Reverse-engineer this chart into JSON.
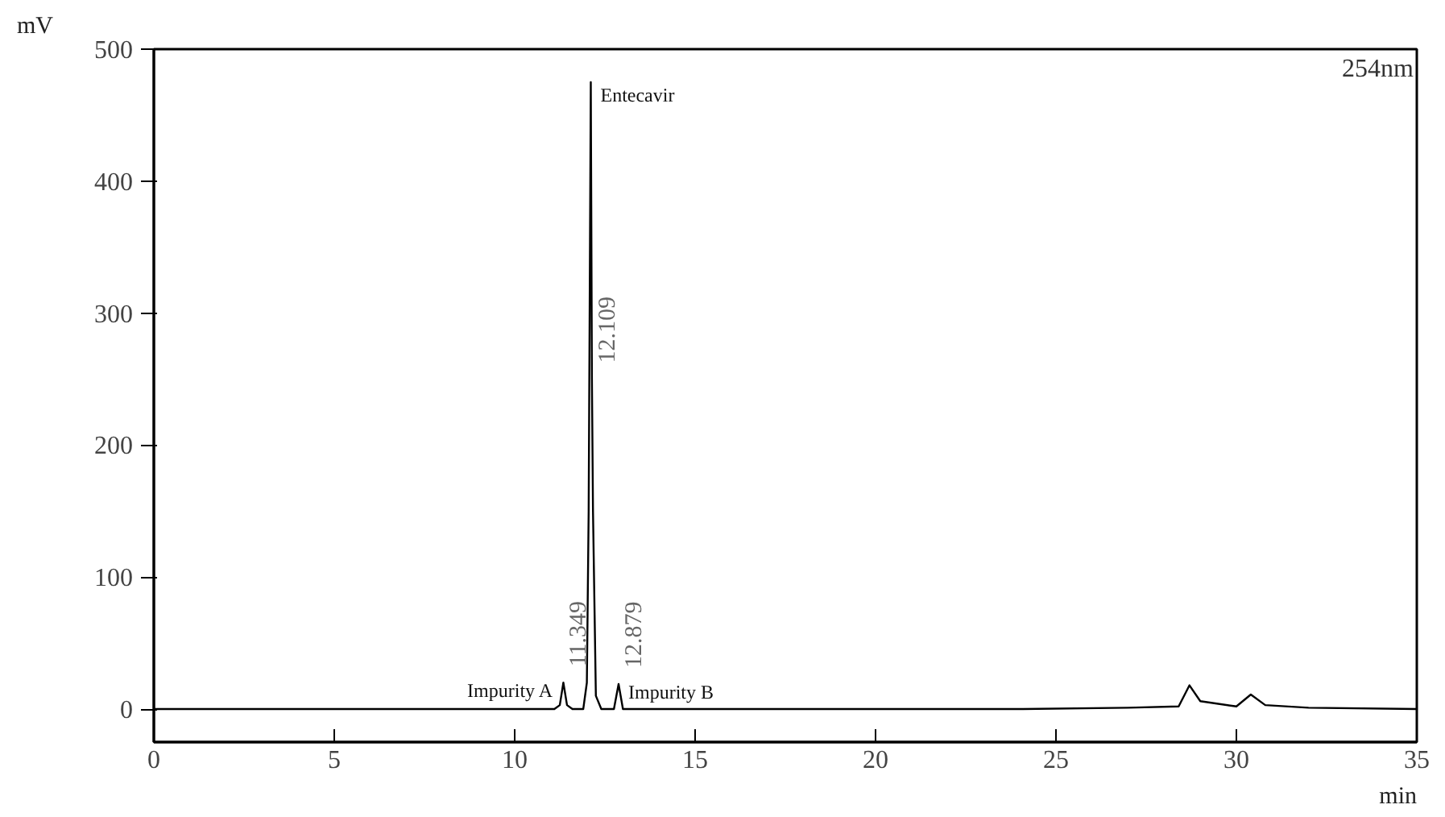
{
  "chart_data": {
    "type": "line",
    "xlabel": "min",
    "ylabel": "mV",
    "x": [
      0,
      4,
      11.1,
      11.25,
      11.349,
      11.45,
      11.6,
      11.9,
      12.0,
      12.05,
      12.109,
      12.14,
      12.17,
      12.25,
      12.4,
      12.75,
      12.879,
      13.0,
      24,
      27,
      28.4,
      28.7,
      29,
      30,
      30.4,
      30.8,
      32,
      35
    ],
    "values": [
      0,
      0,
      0,
      3,
      20,
      3,
      0,
      0,
      20,
      150,
      475,
      250,
      150,
      10,
      0,
      0,
      19,
      0,
      0,
      1,
      2,
      18,
      6,
      2,
      11,
      3,
      1,
      0
    ],
    "color": "#000000",
    "xlim": [
      0,
      35
    ],
    "xticks": [
      0,
      5,
      10,
      15,
      20,
      25,
      30,
      35
    ],
    "ylim": [
      -25,
      500
    ],
    "yticks": [
      0,
      100,
      200,
      300,
      400,
      500
    ],
    "grid": false,
    "marker": "none",
    "line_style": "solid",
    "annotations": [
      {
        "text": "Entecavir",
        "x": 12.109,
        "y": 475
      },
      {
        "text": "12.109",
        "x": 12.14,
        "y": 250
      },
      {
        "text": "11.349",
        "x": 11.349,
        "y": 20
      },
      {
        "text": "12.879",
        "x": 12.879,
        "y": 19
      },
      {
        "text": "Impurity A",
        "x": 11.349,
        "y": 20
      },
      {
        "text": "Impurity B",
        "x": 12.879,
        "y": 19
      },
      "254nm"
    ]
  }
}
